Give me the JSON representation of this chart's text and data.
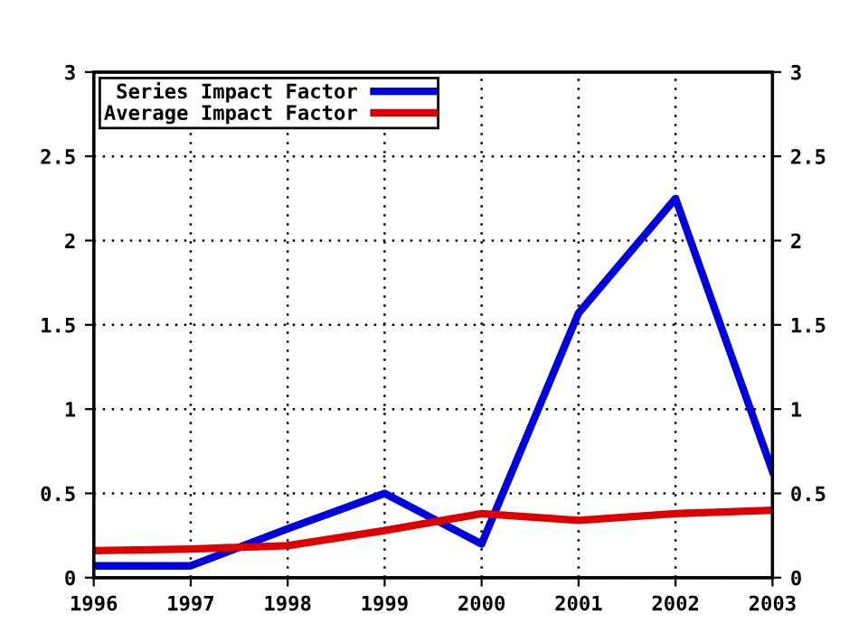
{
  "chart_data": {
    "type": "line",
    "x": [
      1996,
      1997,
      1998,
      1999,
      2000,
      2001,
      2002,
      2003
    ],
    "series": [
      {
        "name": "Series Impact Factor",
        "color": "#0000dd",
        "values": [
          0.07,
          0.07,
          0.29,
          0.5,
          0.2,
          1.57,
          2.25,
          0.63
        ]
      },
      {
        "name": "Average Impact Factor",
        "color": "#dd0000",
        "values": [
          0.16,
          0.17,
          0.19,
          0.28,
          0.38,
          0.34,
          0.38,
          0.4
        ]
      }
    ],
    "xlim": [
      1996,
      2003
    ],
    "xticks": [
      1996,
      1997,
      1998,
      1999,
      2000,
      2001,
      2002,
      2003
    ],
    "ylim": [
      0,
      3
    ],
    "yticks": [
      0,
      0.5,
      1,
      1.5,
      2,
      2.5,
      3
    ],
    "y2lim": [
      0,
      3
    ],
    "y2ticks": [
      0,
      0.5,
      1,
      1.5,
      2,
      2.5,
      3
    ],
    "grid": true,
    "legend": "top left",
    "line_style": "solid",
    "marker": "none"
  }
}
